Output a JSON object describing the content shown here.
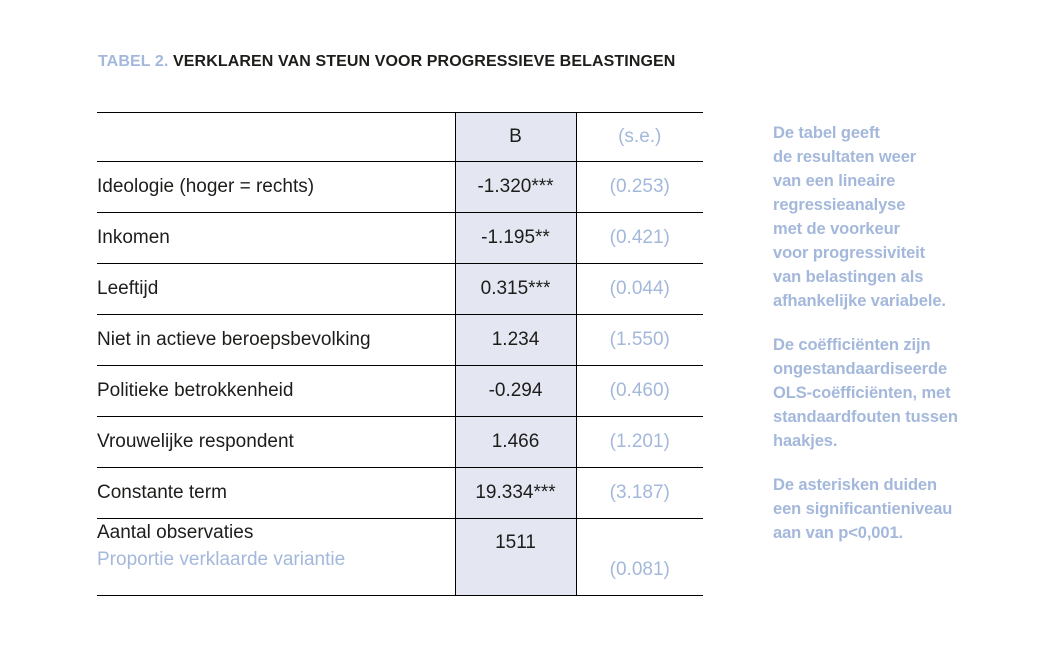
{
  "title": {
    "tag": "TABEL 2.",
    "text": "VERKLAREN VAN STEUN VOOR PROGRESSIEVE BELASTINGEN"
  },
  "table": {
    "header": {
      "label": "",
      "b": "B",
      "se": "(s.e.)"
    },
    "rows": [
      {
        "label": "Ideologie (hoger = rechts)",
        "b": "-1.320***",
        "se": "(0.253)"
      },
      {
        "label": "Inkomen",
        "b": "-1.195**",
        "se": "(0.421)"
      },
      {
        "label": "Leeftijd",
        "b": "0.315***",
        "se": "(0.044)"
      },
      {
        "label": "Niet in actieve beroepsbevolking",
        "b": "1.234",
        "se": "(1.550)"
      },
      {
        "label": "Politieke betrokkenheid",
        "b": "-0.294",
        "se": "(0.460)"
      },
      {
        "label": "Vrouwelijke respondent",
        "b": "1.466",
        "se": "(1.201)"
      },
      {
        "label": "Constante term",
        "b": "19.334***",
        "se": "(3.187)"
      }
    ],
    "footer": {
      "label_top": "Aantal observaties",
      "label_bottom": "Proportie verklaarde variantie",
      "b": "1511",
      "se": "(0.081)"
    }
  },
  "sidebar": {
    "paragraphs": [
      [
        "De tabel geeft",
        "de resultaten weer",
        "van een lineaire",
        "regressieanalyse",
        "met de voorkeur",
        "voor progressiviteit",
        "van belastingen als",
        "afhankelijke variabele."
      ],
      [
        "De coëfficiënten zijn",
        "ongestandaardiseerde",
        "OLS-coëfficiënten, met",
        "standaardfouten tussen",
        "haakjes."
      ],
      [
        "De asterisken duiden",
        "een significantieniveau",
        "aan van p<0,001."
      ]
    ]
  },
  "colors": {
    "accent_periwinkle": "#a4b8db",
    "highlight_column_bg": "#e4e7f2",
    "text": "#1d1d1b",
    "border": "#000000"
  }
}
